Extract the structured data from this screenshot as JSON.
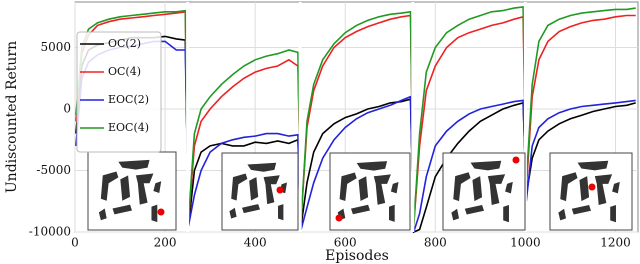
{
  "chart_data": {
    "type": "line",
    "xlabel": "Episodes",
    "ylabel": "Undiscounted Return",
    "x": [
      2,
      15,
      30,
      50,
      75,
      100,
      125,
      150,
      175,
      200,
      225,
      245,
      252,
      265,
      280,
      300,
      325,
      350,
      375,
      400,
      425,
      450,
      475,
      495,
      502,
      515,
      530,
      550,
      575,
      600,
      625,
      650,
      675,
      700,
      725,
      745,
      752,
      765,
      780,
      800,
      825,
      850,
      875,
      900,
      925,
      950,
      975,
      995,
      1002,
      1015,
      1030,
      1050,
      1075,
      1100,
      1125,
      1150,
      1175,
      1200,
      1225,
      1245
    ],
    "series": [
      {
        "name": "OC(2)",
        "color": "#000000",
        "values": [
          -2000,
          3500,
          4800,
          5200,
          5400,
          5600,
          5800,
          5800,
          5800,
          5900,
          5700,
          5600,
          -9500,
          -5000,
          -3500,
          -3000,
          -2800,
          -3000,
          -3000,
          -2700,
          -2800,
          -2600,
          -2800,
          -2500,
          -9500,
          -6000,
          -3500,
          -2000,
          -1200,
          -700,
          -400,
          0,
          200,
          500,
          600,
          800,
          -10000,
          -9800,
          -8000,
          -5500,
          -4000,
          -2800,
          -1800,
          -1000,
          -500,
          0,
          300,
          500,
          -7000,
          -4000,
          -2500,
          -1800,
          -1200,
          -800,
          -500,
          -200,
          0,
          200,
          300,
          500
        ]
      },
      {
        "name": "OC(4)",
        "color": "#ee2222",
        "values": [
          -1000,
          4500,
          6000,
          6800,
          7100,
          7300,
          7400,
          7500,
          7600,
          7700,
          7800,
          7900,
          -9000,
          -3000,
          -1000,
          0,
          1000,
          1800,
          2500,
          3000,
          3300,
          3500,
          4000,
          3500,
          -9000,
          -1500,
          1500,
          3500,
          5000,
          5800,
          6300,
          6700,
          7000,
          7300,
          7500,
          7600,
          -9500,
          -3000,
          1500,
          3500,
          5000,
          5800,
          6200,
          6500,
          6800,
          7000,
          7300,
          7500,
          -6500,
          1000,
          4000,
          5500,
          6300,
          6700,
          7000,
          7200,
          7300,
          7500,
          7600,
          7600
        ]
      },
      {
        "name": "EOC(2)",
        "color": "#2222dd",
        "values": [
          -3000,
          2500,
          3800,
          4400,
          4800,
          5000,
          5100,
          5300,
          5500,
          5500,
          4800,
          4800,
          -9500,
          -7000,
          -5000,
          -3500,
          -2800,
          -2500,
          -2300,
          -2200,
          -2000,
          -2000,
          -2200,
          -2100,
          -9800,
          -8000,
          -6000,
          -4000,
          -2500,
          -1500,
          -800,
          -300,
          0,
          300,
          700,
          1000,
          -10000,
          -8500,
          -5500,
          -3000,
          -1800,
          -1000,
          -400,
          0,
          200,
          400,
          600,
          700,
          -7500,
          -3000,
          -1500,
          -800,
          -300,
          0,
          200,
          300,
          400,
          500,
          600,
          700
        ]
      },
      {
        "name": "EOC(4)",
        "color": "#229922",
        "values": [
          -500,
          5000,
          6500,
          7000,
          7300,
          7500,
          7600,
          7700,
          7800,
          7900,
          7900,
          8000,
          -9000,
          -2000,
          0,
          1000,
          2000,
          2800,
          3500,
          4000,
          4300,
          4500,
          4800,
          4600,
          -9000,
          -1000,
          2000,
          4000,
          5300,
          6200,
          6800,
          7200,
          7500,
          7700,
          7800,
          7900,
          -9500,
          -2000,
          3000,
          5000,
          6200,
          6800,
          7300,
          7600,
          7900,
          8000,
          8200,
          8300,
          -6000,
          2000,
          5500,
          6800,
          7300,
          7600,
          7800,
          7900,
          8000,
          8100,
          8100,
          8200
        ]
      }
    ],
    "xlim": [
      0,
      1250
    ],
    "xticks": [
      0,
      200,
      400,
      600,
      800,
      1000,
      1200
    ],
    "ylim": [
      -10000,
      8700
    ],
    "yticks": [
      -10000,
      -5000,
      0,
      5000
    ],
    "dividers": [
      250,
      500,
      750,
      1000
    ],
    "grid": true
  }
}
